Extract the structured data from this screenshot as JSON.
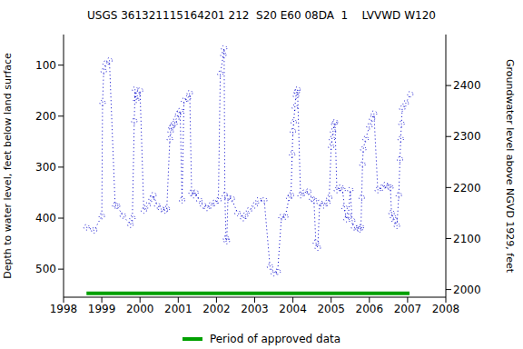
{
  "chart_data": {
    "type": "scatter",
    "title": "USGS 361321115164201 212  S20 E60 08DA  1    LVVWD W120",
    "y_label": "Depth to water level, feet below land surface",
    "y2_label": "Groundwater level above NGVD 1929, feet",
    "x": [
      1998.6,
      1998.8,
      1999.0,
      1999.02,
      1999.05,
      1999.1,
      1999.2,
      1999.35,
      1999.4,
      1999.55,
      1999.75,
      1999.8,
      1999.85,
      1999.87,
      1999.9,
      1999.93,
      2000.0,
      2000.1,
      2000.2,
      2000.3,
      2000.35,
      2000.45,
      2000.55,
      2000.65,
      2000.7,
      2000.78,
      2000.8,
      2000.82,
      2000.85,
      2000.9,
      2000.95,
      2001.0,
      2001.05,
      2001.1,
      2001.15,
      2001.25,
      2001.3,
      2001.35,
      2001.4,
      2001.45,
      2001.55,
      2001.65,
      2001.75,
      2001.85,
      2001.95,
      2002.05,
      2002.1,
      2002.18,
      2002.2,
      2002.22,
      2002.25,
      2002.27,
      2002.3,
      2002.4,
      2002.55,
      2002.7,
      2002.75,
      2002.85,
      2003.0,
      2003.1,
      2003.25,
      2003.4,
      2003.5,
      2003.6,
      2003.7,
      2003.8,
      2003.9,
      2003.95,
      2003.98,
      2004.0,
      2004.02,
      2004.05,
      2004.08,
      2004.1,
      2004.12,
      2004.2,
      2004.3,
      2004.4,
      2004.5,
      2004.55,
      2004.6,
      2004.65,
      2004.7,
      2004.8,
      2004.9,
      2004.95,
      2005.0,
      2005.02,
      2005.05,
      2005.08,
      2005.1,
      2005.15,
      2005.25,
      2005.3,
      2005.35,
      2005.4,
      2005.45,
      2005.5,
      2005.55,
      2005.6,
      2005.7,
      2005.75,
      2005.78,
      2005.8,
      2005.82,
      2005.84,
      2005.9,
      2006.0,
      2006.07,
      2006.12,
      2006.22,
      2006.34,
      2006.42,
      2006.5,
      2006.55,
      2006.58,
      2006.62,
      2006.66,
      2006.72,
      2006.77,
      2006.8,
      2006.82,
      2006.84,
      2006.86,
      2006.95,
      2007.07
    ],
    "values": [
      418,
      424,
      396,
      174,
      112,
      97,
      91,
      375,
      376,
      395,
      413,
      400,
      210,
      148,
      168,
      160,
      150,
      385,
      375,
      362,
      355,
      375,
      382,
      385,
      382,
      245,
      230,
      222,
      218,
      215,
      205,
      195,
      190,
      365,
      170,
      165,
      155,
      350,
      355,
      350,
      365,
      375,
      380,
      375,
      370,
      365,
      117,
      80,
      67,
      355,
      440,
      445,
      360,
      362,
      390,
      400,
      395,
      385,
      375,
      365,
      365,
      495,
      508,
      505,
      398,
      397,
      360,
      355,
      275,
      230,
      212,
      183,
      160,
      153,
      148,
      355,
      350,
      348,
      362,
      365,
      448,
      458,
      370,
      375,
      370,
      360,
      260,
      245,
      230,
      215,
      212,
      345,
      340,
      345,
      380,
      402,
      395,
      345,
      405,
      418,
      420,
      422,
      418,
      360,
      295,
      265,
      245,
      220,
      205,
      195,
      345,
      340,
      335,
      338,
      340,
      390,
      398,
      405,
      415,
      355,
      285,
      245,
      215,
      185,
      175,
      157
    ],
    "color": "#0000cc",
    "marker": "circle",
    "line_style": "dotted",
    "xlim": [
      1998,
      2008
    ],
    "xticks": [
      1998,
      1999,
      2000,
      2001,
      2002,
      2003,
      2004,
      2005,
      2006,
      2007,
      2008
    ],
    "ylim": [
      40,
      555
    ],
    "yticks": [
      100,
      200,
      300,
      400,
      500
    ],
    "y2lim": [
      1985,
      2500
    ],
    "y2ticks": [
      2000,
      2100,
      2200,
      2300,
      2400
    ],
    "approved_period": {
      "label": "Period of approved data",
      "x": [
        1998.6,
        2007.05
      ],
      "color": "#00a000"
    },
    "legend": "bottom",
    "grid": false
  }
}
